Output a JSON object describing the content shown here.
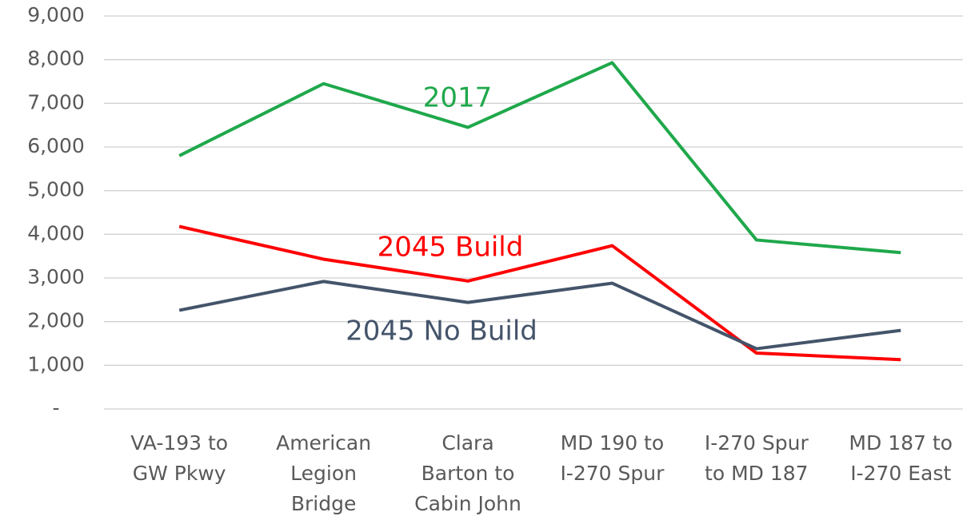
{
  "chart_data": {
    "type": "line",
    "categories": [
      "VA-193 to\nGW Pkwy",
      "American\nLegion\nBridge",
      "Clara\nBarton to\nCabin John",
      "MD 190 to\nI-270 Spur",
      "I-270 Spur\nto MD 187",
      "MD 187 to\nI-270 East"
    ],
    "series": [
      {
        "name": "2017",
        "color": "#1fa84b",
        "values": [
          5800,
          7450,
          6450,
          7930,
          3870,
          3580
        ]
      },
      {
        "name": "2045 Build",
        "color": "#ff0000",
        "values": [
          4180,
          3430,
          2930,
          3740,
          1280,
          1130
        ]
      },
      {
        "name": "2045 No Build",
        "color": "#44546a",
        "values": [
          2260,
          2920,
          2440,
          2880,
          1380,
          1800
        ]
      }
    ],
    "ylim": [
      0,
      9000
    ],
    "yticks": [
      {
        "value": 0,
        "label": "-"
      },
      {
        "value": 1000,
        "label": "1,000"
      },
      {
        "value": 2000,
        "label": "2,000"
      },
      {
        "value": 3000,
        "label": "3,000"
      },
      {
        "value": 4000,
        "label": "4,000"
      },
      {
        "value": 5000,
        "label": "5,000"
      },
      {
        "value": 6000,
        "label": "6,000"
      },
      {
        "value": 7000,
        "label": "7,000"
      },
      {
        "value": 8000,
        "label": "8,000"
      },
      {
        "value": 9000,
        "label": "9,000"
      }
    ],
    "grid": true
  }
}
